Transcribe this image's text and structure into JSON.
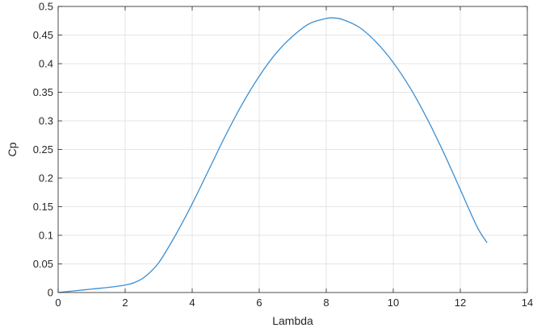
{
  "chart_data": {
    "type": "line",
    "title": "",
    "xlabel": "Lambda",
    "ylabel": "Cp",
    "xlim": [
      0,
      14
    ],
    "ylim": [
      0,
      0.5
    ],
    "xticks": [
      "0",
      "2",
      "4",
      "6",
      "8",
      "10",
      "12",
      "14"
    ],
    "yticks": [
      "0",
      "0.05",
      "0.1",
      "0.15",
      "0.2",
      "0.25",
      "0.3",
      "0.35",
      "0.4",
      "0.45",
      "0.5"
    ],
    "grid": true,
    "series_color": "#3d8fd1",
    "series": [
      {
        "x": [
          0,
          0.5,
          1,
          1.5,
          2,
          2.3,
          2.6,
          3,
          3.5,
          4,
          4.5,
          5,
          5.5,
          6,
          6.5,
          7,
          7.5,
          8,
          8.2,
          8.5,
          9,
          9.5,
          10,
          10.5,
          11,
          11.5,
          12,
          12.5,
          12.8
        ],
        "y": [
          0,
          0.003,
          0.006,
          0.009,
          0.013,
          0.018,
          0.028,
          0.052,
          0.1,
          0.155,
          0.215,
          0.275,
          0.33,
          0.378,
          0.418,
          0.448,
          0.47,
          0.479,
          0.48,
          0.477,
          0.463,
          0.437,
          0.402,
          0.358,
          0.305,
          0.245,
          0.18,
          0.115,
          0.087
        ]
      }
    ]
  }
}
